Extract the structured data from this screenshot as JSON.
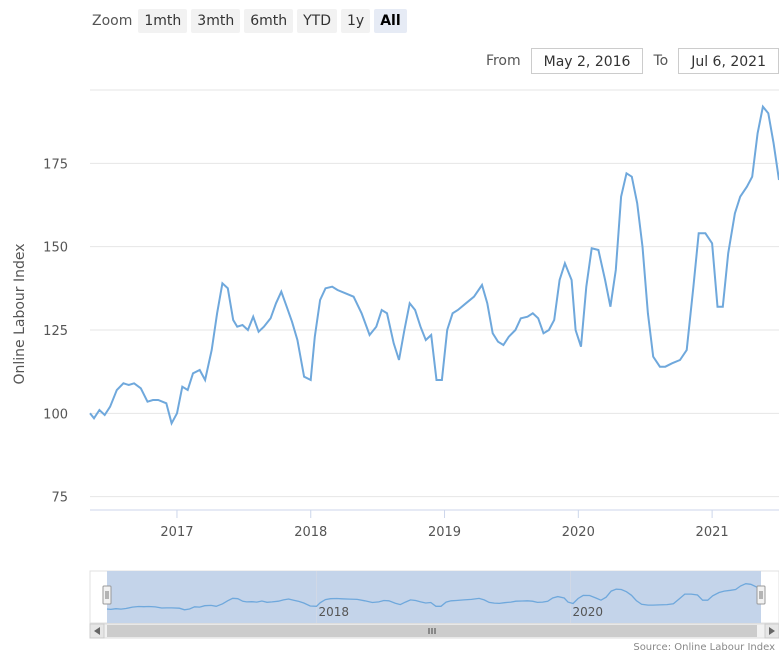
{
  "range_selector": {
    "zoom_label": "Zoom",
    "buttons": [
      "1mth",
      "3mth",
      "6mth",
      "YTD",
      "1y",
      "All"
    ],
    "active": "All",
    "from_label": "From",
    "from_value": "May 2, 2016",
    "to_label": "To",
    "to_value": "Jul 6, 2021"
  },
  "colors": {
    "line": "#6fa8dc",
    "navigator_mask": "#c4d4ea",
    "grid": "#e6e6e6"
  },
  "navigator": {
    "tick_labels": [
      "2018",
      "2020"
    ],
    "scrollbar_icon": "grip-icon"
  },
  "source": "Source: Online Labour Index",
  "chart_data": {
    "type": "line",
    "title": "",
    "xlabel": "",
    "ylabel": "Online Labour Index",
    "x_ticks": [
      "2017",
      "2018",
      "2019",
      "2020",
      "2021"
    ],
    "y_ticks": [
      75,
      100,
      125,
      150,
      175
    ],
    "ylim": [
      71,
      197
    ],
    "xlim": [
      2016.35,
      2021.5
    ],
    "grid": true,
    "series": [
      {
        "x": [
          2016.35,
          2016.38,
          2016.42,
          2016.46,
          2016.5,
          2016.55,
          2016.6,
          2016.64,
          2016.68,
          2016.73,
          2016.78,
          2016.82,
          2016.86,
          2016.92,
          2016.96,
          2017.0,
          2017.04,
          2017.08,
          2017.12,
          2017.17,
          2017.21,
          2017.26,
          2017.3,
          2017.34,
          2017.38,
          2017.42,
          2017.45,
          2017.49,
          2017.53,
          2017.57,
          2017.61,
          2017.65,
          2017.7,
          2017.74,
          2017.78,
          2017.82,
          2017.86,
          2017.9,
          2017.95,
          2018.0,
          2018.03,
          2018.07,
          2018.11,
          2018.16,
          2018.2,
          2018.26,
          2018.32,
          2018.38,
          2018.44,
          2018.49,
          2018.53,
          2018.57,
          2018.62,
          2018.66,
          2018.7,
          2018.74,
          2018.78,
          2018.82,
          2018.86,
          2018.9,
          2018.94,
          2018.98,
          2019.02,
          2019.06,
          2019.1,
          2019.16,
          2019.22,
          2019.28,
          2019.32,
          2019.36,
          2019.4,
          2019.44,
          2019.48,
          2019.53,
          2019.57,
          2019.62,
          2019.66,
          2019.7,
          2019.74,
          2019.78,
          2019.82,
          2019.86,
          2019.9,
          2019.95,
          2019.98,
          2020.02,
          2020.06,
          2020.1,
          2020.15,
          2020.2,
          2020.24,
          2020.28,
          2020.32,
          2020.36,
          2020.4,
          2020.44,
          2020.48,
          2020.52,
          2020.56,
          2020.61,
          2020.65,
          2020.7,
          2020.76,
          2020.81,
          2020.86,
          2020.9,
          2020.95,
          2021.0,
          2021.04,
          2021.08,
          2021.12,
          2021.17,
          2021.21,
          2021.26,
          2021.3,
          2021.34,
          2021.38,
          2021.42,
          2021.46,
          2021.5
        ],
        "values": [
          100,
          98.5,
          101,
          99.5,
          102,
          107,
          109,
          108.5,
          109,
          107.5,
          103.5,
          104,
          104,
          103,
          97,
          100,
          108,
          107,
          112,
          113,
          110,
          119,
          130,
          139,
          137.5,
          128,
          126,
          126.5,
          125,
          129,
          124.5,
          126,
          128.5,
          133,
          136.5,
          132,
          127.5,
          122,
          111,
          110,
          123,
          134,
          137.5,
          138,
          137,
          136,
          135,
          130,
          123.5,
          126,
          131,
          130,
          121,
          116,
          125,
          133,
          131,
          126,
          122,
          123.5,
          110,
          110,
          125,
          130,
          131,
          133,
          135,
          138.5,
          133,
          124,
          121.5,
          120.5,
          123,
          125,
          128.5,
          129,
          130,
          128.5,
          124,
          125,
          128,
          140,
          145,
          140,
          125,
          120,
          138,
          149.5,
          149,
          140,
          132,
          143,
          165,
          172,
          171,
          163,
          150,
          130,
          117,
          114,
          114,
          115,
          116,
          119,
          138,
          154,
          154,
          151,
          132,
          132,
          148,
          160,
          165,
          168,
          171,
          184,
          192,
          190,
          181,
          170
        ]
      }
    ]
  }
}
